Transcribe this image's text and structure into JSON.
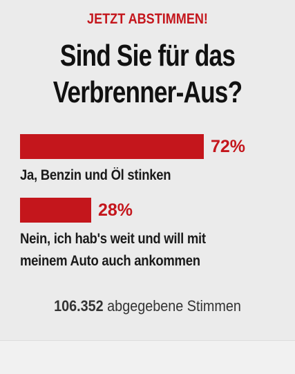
{
  "poll": {
    "kicker": "JETZT ABSTIMMEN!",
    "question_line1": "Sind Sie für das",
    "question_line2": "Verbrenner-Aus?",
    "options": [
      {
        "percent_label": "72%",
        "percent": 72,
        "label": "Ja, Benzin und Öl stinken"
      },
      {
        "percent_label": "28%",
        "percent": 28,
        "label_line1": "Nein, ich hab's weit und will mit",
        "label_line2": "meinem Auto auch ankommen"
      }
    ],
    "vote_count": "106.352",
    "vote_suffix": "abgegebene Stimmen"
  },
  "colors": {
    "accent": "#c4161c",
    "background": "#ebebeb",
    "text": "#111111"
  }
}
